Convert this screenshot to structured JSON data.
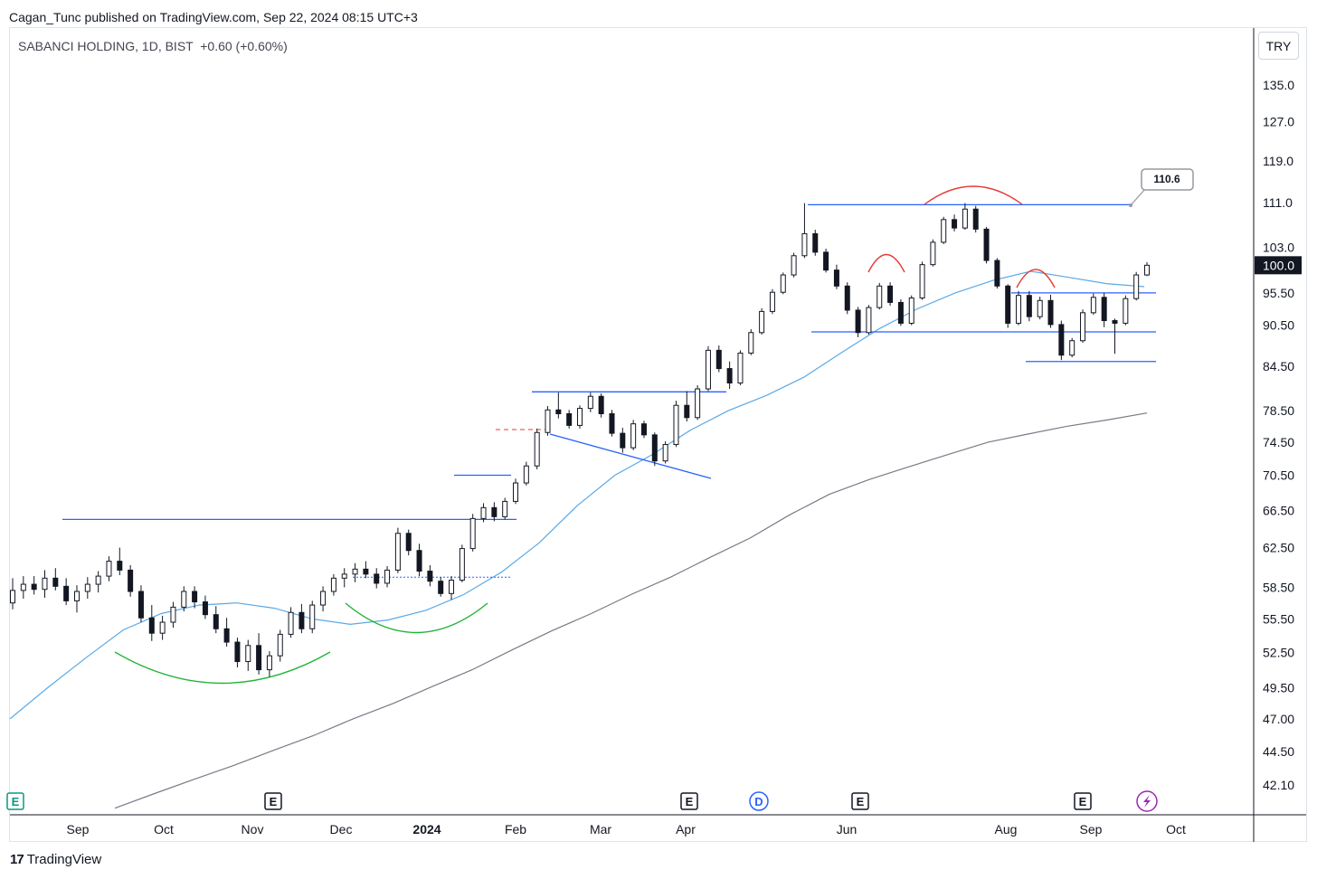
{
  "header": {
    "publisher_line": "Cagan_Tunc published on TradingView.com, Sep 22, 2024 08:15 UTC+3"
  },
  "footer": {
    "brand": "TradingView",
    "logo": "17"
  },
  "chart_data": {
    "type": "candlestick",
    "title": "SABANCI HOLDING, 1D, BIST  +0.60 (+0.60%)",
    "symbol": "SABANCI HOLDING",
    "interval": "1D",
    "exchange": "BIST",
    "change": "+0.60 (+0.60%)",
    "currency": "TRY",
    "last_price": "100.0",
    "price_scale": "log",
    "y_ticks": [
      "135.0",
      "127.0",
      "119.0",
      "111.0",
      "103.0",
      "95.50",
      "90.50",
      "84.50",
      "78.50",
      "74.50",
      "70.50",
      "66.50",
      "62.50",
      "58.50",
      "55.50",
      "52.50",
      "49.50",
      "47.00",
      "44.50",
      "42.10"
    ],
    "x_ticks": [
      "Sep",
      "Oct",
      "Nov",
      "Dec",
      "2024",
      "Feb",
      "Mar",
      "Apr",
      "Jun",
      "Aug",
      "Sep",
      "Oct"
    ],
    "annotations": {
      "price_callout": "110.6",
      "horizontal_levels": [
        110.6,
        95.5,
        89.5,
        85.2,
        65.5,
        59.5,
        70.5,
        81.0
      ],
      "patterns": [
        "rounded bottom",
        "rounded bottom",
        "rounded top",
        "rounded top",
        "rounded top"
      ]
    },
    "event_markers": [
      "E",
      "E",
      "E",
      "D",
      "E",
      "E",
      "lightning"
    ],
    "series": [
      {
        "name": "",
        "color": "#5aa9e6",
        "points": [
          [
            0,
            47
          ],
          [
            1,
            49.5
          ],
          [
            2,
            52
          ],
          [
            3,
            54.5
          ],
          [
            4,
            56
          ],
          [
            5,
            56.8
          ],
          [
            6,
            57
          ],
          [
            7,
            56.5
          ],
          [
            8,
            55.5
          ],
          [
            9,
            55
          ],
          [
            10,
            55.4
          ],
          [
            11,
            56.3
          ],
          [
            12,
            57.8
          ],
          [
            13,
            60
          ],
          [
            14,
            63
          ],
          [
            15,
            67
          ],
          [
            16,
            70.5
          ],
          [
            17,
            73
          ],
          [
            18,
            76
          ],
          [
            19,
            78.5
          ],
          [
            20,
            80.5
          ],
          [
            21,
            83
          ],
          [
            22,
            86.5
          ],
          [
            23,
            90
          ],
          [
            24,
            93
          ],
          [
            25,
            95.5
          ],
          [
            26,
            97.5
          ],
          [
            27,
            99
          ],
          [
            28,
            98
          ],
          [
            29,
            97
          ],
          [
            30,
            96.5
          ]
        ]
      },
      {
        "name": "",
        "color": "#787b86",
        "points": [
          [
            0,
            40.5
          ],
          [
            1,
            41.5
          ],
          [
            2,
            42.5
          ],
          [
            3,
            43.5
          ],
          [
            4,
            44.6
          ],
          [
            5,
            45.7
          ],
          [
            6,
            47
          ],
          [
            7,
            48.2
          ],
          [
            8,
            49.6
          ],
          [
            9,
            51
          ],
          [
            10,
            52.7
          ],
          [
            11,
            54.4
          ],
          [
            12,
            56
          ],
          [
            13,
            57.8
          ],
          [
            14,
            59.5
          ],
          [
            15,
            61.5
          ],
          [
            16,
            63.5
          ],
          [
            17,
            66
          ],
          [
            18,
            68.3
          ],
          [
            19,
            70
          ],
          [
            20,
            71.5
          ],
          [
            21,
            73
          ],
          [
            22,
            74.5
          ],
          [
            23,
            75.5
          ],
          [
            24,
            76.5
          ],
          [
            25,
            77.3
          ],
          [
            26,
            78.2
          ]
        ]
      }
    ],
    "candles": [
      [
        57,
        59.4,
        56.4,
        58.2
      ],
      [
        58.2,
        59.6,
        57.4,
        58.8
      ],
      [
        58.8,
        59.6,
        57.8,
        58.3
      ],
      [
        58.3,
        60.2,
        57.5,
        59.4
      ],
      [
        59.4,
        60.4,
        58.2,
        58.6
      ],
      [
        58.6,
        59.4,
        56.8,
        57.2
      ],
      [
        57.2,
        58.7,
        56.1,
        58.1
      ],
      [
        58.1,
        59.5,
        57.4,
        58.8
      ],
      [
        58.8,
        60.1,
        58,
        59.6
      ],
      [
        59.6,
        61.6,
        59.1,
        61.1
      ],
      [
        61.1,
        62.5,
        59.7,
        60.2
      ],
      [
        60.2,
        60.7,
        57.6,
        58.1
      ],
      [
        58.1,
        58.7,
        55.2,
        55.6
      ],
      [
        55.6,
        56.8,
        53.5,
        54.2
      ],
      [
        54.2,
        55.8,
        53.6,
        55.2
      ],
      [
        55.2,
        57.1,
        54.7,
        56.6
      ],
      [
        56.6,
        58.6,
        56.2,
        58.1
      ],
      [
        58.1,
        58.6,
        56.5,
        57.1
      ],
      [
        57.1,
        57.7,
        55.5,
        55.9
      ],
      [
        55.9,
        56.7,
        54.2,
        54.6
      ],
      [
        54.6,
        55.6,
        53,
        53.4
      ],
      [
        53.4,
        53.8,
        51.2,
        51.7
      ],
      [
        51.7,
        53.6,
        50.9,
        53.1
      ],
      [
        53.1,
        54.2,
        50.6,
        51
      ],
      [
        51,
        52.6,
        50.4,
        52.2
      ],
      [
        52.2,
        54.5,
        51.7,
        54.1
      ],
      [
        54.1,
        56.6,
        53.8,
        56.1
      ],
      [
        56.1,
        56.9,
        54.2,
        54.6
      ],
      [
        54.6,
        57.2,
        54.2,
        56.8
      ],
      [
        56.8,
        58.6,
        56.2,
        58.1
      ],
      [
        58.1,
        59.8,
        57.7,
        59.4
      ],
      [
        59.4,
        60.4,
        58.5,
        59.8
      ],
      [
        59.8,
        60.9,
        59,
        60.3
      ],
      [
        60.3,
        61.1,
        59.4,
        59.8
      ],
      [
        59.8,
        60.4,
        58.4,
        58.9
      ],
      [
        58.9,
        60.6,
        58.5,
        60.2
      ],
      [
        60.2,
        64.6,
        59.9,
        64
      ],
      [
        64,
        64.4,
        61.7,
        62.2
      ],
      [
        62.2,
        62.9,
        59.6,
        60.1
      ],
      [
        60.1,
        60.7,
        58.6,
        59.1
      ],
      [
        59.1,
        59.5,
        57.6,
        57.9
      ],
      [
        57.9,
        59.6,
        57.3,
        59.2
      ],
      [
        59.2,
        62.8,
        59,
        62.4
      ],
      [
        62.4,
        66.1,
        62.1,
        65.6
      ],
      [
        65.6,
        67.3,
        65.2,
        66.8
      ],
      [
        66.8,
        67.4,
        65.3,
        65.8
      ],
      [
        65.8,
        67.9,
        65.5,
        67.5
      ],
      [
        67.5,
        70.1,
        67.2,
        69.6
      ],
      [
        69.6,
        72.1,
        69.3,
        71.6
      ],
      [
        71.6,
        76.2,
        71.2,
        75.7
      ],
      [
        75.7,
        79.1,
        75.3,
        78.6
      ],
      [
        78.6,
        80.9,
        77.5,
        78.1
      ],
      [
        78.1,
        78.6,
        76.2,
        76.6
      ],
      [
        76.6,
        79.2,
        76.2,
        78.8
      ],
      [
        78.8,
        80.9,
        78.3,
        80.4
      ],
      [
        80.4,
        80.8,
        77.6,
        78.1
      ],
      [
        78.1,
        78.6,
        75.2,
        75.6
      ],
      [
        75.6,
        76.3,
        73.2,
        73.8
      ],
      [
        73.8,
        77.3,
        73.5,
        76.8
      ],
      [
        76.8,
        77.2,
        75,
        75.4
      ],
      [
        75.4,
        75.7,
        71.6,
        72.2
      ],
      [
        72.2,
        74.6,
        71.9,
        74.2
      ],
      [
        74.2,
        79.8,
        73.9,
        79.2
      ],
      [
        79.2,
        81.1,
        77.1,
        77.6
      ],
      [
        77.6,
        81.9,
        77.3,
        81.4
      ],
      [
        81.4,
        87.4,
        81.1,
        86.8
      ],
      [
        86.8,
        87.5,
        83.7,
        84.2
      ],
      [
        84.2,
        85.2,
        81.4,
        82.2
      ],
      [
        82.2,
        86.8,
        81.9,
        86.4
      ],
      [
        86.4,
        89.9,
        86.1,
        89.4
      ],
      [
        89.4,
        93.1,
        89.1,
        92.6
      ],
      [
        92.6,
        96.1,
        92.2,
        95.6
      ],
      [
        95.6,
        98.8,
        95.3,
        98.4
      ],
      [
        98.4,
        102.1,
        98,
        101.6
      ],
      [
        101.6,
        110.9,
        101.2,
        105.4
      ],
      [
        105.4,
        106.1,
        101.6,
        102.2
      ],
      [
        102.2,
        102.8,
        98.8,
        99.2
      ],
      [
        99.2,
        100.1,
        96.1,
        96.6
      ],
      [
        96.6,
        97.2,
        92.2,
        92.8
      ],
      [
        92.8,
        93.3,
        88.7,
        89.4
      ],
      [
        89.4,
        93.6,
        89.1,
        93.2
      ],
      [
        93.2,
        97.1,
        92.9,
        96.6
      ],
      [
        96.6,
        97.2,
        93.5,
        94
      ],
      [
        94,
        94.5,
        90.4,
        90.8
      ],
      [
        90.8,
        95.1,
        90.5,
        94.7
      ],
      [
        94.7,
        100.6,
        94.4,
        100.1
      ],
      [
        100.1,
        104.4,
        99.8,
        103.9
      ],
      [
        103.9,
        108.4,
        103.6,
        107.9
      ],
      [
        107.9,
        108.8,
        105.8,
        106.4
      ],
      [
        106.4,
        110.9,
        106.1,
        109.8
      ],
      [
        109.8,
        110.4,
        105.6,
        106.2
      ],
      [
        106.2,
        106.6,
        100.3,
        100.8
      ],
      [
        100.8,
        101.2,
        96.2,
        96.6
      ],
      [
        96.6,
        96.9,
        90.1,
        90.8
      ],
      [
        90.8,
        95.8,
        90.5,
        95.1
      ],
      [
        95.1,
        95.8,
        91.1,
        91.8
      ],
      [
        91.8,
        94.9,
        91.4,
        94.3
      ],
      [
        94.3,
        95.2,
        90.1,
        90.6
      ],
      [
        90.6,
        91.2,
        85.4,
        86.1
      ],
      [
        86.1,
        88.6,
        85.8,
        88.2
      ],
      [
        88.2,
        92.9,
        87.9,
        92.4
      ],
      [
        92.4,
        95.4,
        92.1,
        94.8
      ],
      [
        94.8,
        95.5,
        90.2,
        91.2
      ],
      [
        91.2,
        91.5,
        86.3,
        90.8
      ],
      [
        90.8,
        95.1,
        90.5,
        94.6
      ],
      [
        94.6,
        98.9,
        94.3,
        98.4
      ],
      [
        98.4,
        100.5,
        98.2,
        100
      ]
    ]
  }
}
